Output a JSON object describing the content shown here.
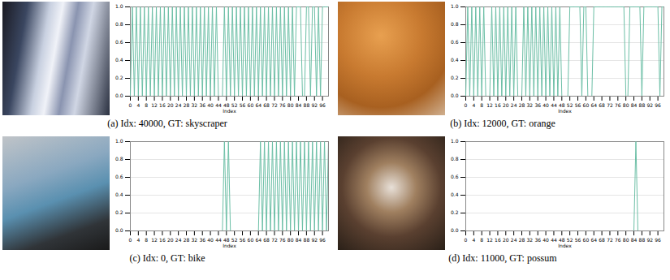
{
  "chart_data": [
    {
      "type": "line",
      "caption": "(a) Idx: 40000, GT: skyscraper",
      "xlabel": "Index",
      "color": "#6cbfa6",
      "grid": true,
      "xlim": [
        0,
        99
      ],
      "xticks": [
        0,
        4,
        8,
        12,
        16,
        20,
        24,
        28,
        32,
        36,
        40,
        44,
        48,
        52,
        56,
        60,
        64,
        68,
        72,
        76,
        80,
        84,
        88,
        92,
        96
      ],
      "ylim": [
        0,
        1
      ],
      "yticks": [
        {
          "value": 0,
          "label": "0.0"
        },
        {
          "value": 0.2,
          "label": "0.2"
        },
        {
          "value": 0.4,
          "label": "0.4"
        },
        {
          "value": 0.6,
          "label": "0.6"
        },
        {
          "value": 0.8,
          "label": "0.8"
        },
        {
          "value": 1,
          "label": "1.0"
        }
      ],
      "x": [
        0,
        1,
        2,
        3,
        4,
        5,
        6,
        7,
        8,
        9,
        10,
        11,
        12,
        13,
        14,
        15,
        16,
        17,
        18,
        19,
        20,
        21,
        22,
        23,
        24,
        25,
        26,
        27,
        28,
        29,
        30,
        31,
        32,
        33,
        34,
        35,
        36,
        37,
        38,
        39,
        40,
        41,
        42,
        43,
        44,
        45,
        46,
        47,
        48,
        49,
        50,
        51,
        52,
        53,
        54,
        55,
        56,
        57,
        58,
        59,
        60,
        61,
        62,
        63,
        64,
        65,
        66,
        67,
        68,
        69,
        70,
        71,
        72,
        73,
        74,
        75,
        76,
        77,
        78,
        79,
        80,
        81,
        82,
        83,
        84,
        85,
        86,
        87,
        88,
        89,
        90,
        91,
        92,
        93,
        94,
        95,
        96,
        97,
        98,
        99
      ],
      "values": [
        0,
        1,
        0,
        1,
        0,
        1,
        0,
        1,
        0,
        1,
        0,
        1,
        0,
        1,
        0,
        1,
        0,
        1,
        0,
        1,
        0,
        1,
        0,
        1,
        0,
        1,
        0,
        1,
        0,
        1,
        0,
        1,
        0,
        1,
        0,
        1,
        0,
        1,
        0,
        1,
        0,
        1,
        0,
        1,
        0,
        0,
        0,
        1,
        0,
        1,
        0,
        1,
        0,
        1,
        0,
        1,
        0,
        1,
        0,
        1,
        0,
        1,
        0,
        1,
        0,
        1,
        0,
        1,
        0,
        1,
        0,
        1,
        0,
        1,
        0,
        1,
        0,
        1,
        0,
        1,
        0,
        1,
        0,
        1,
        1,
        1,
        0,
        0,
        1,
        1,
        0,
        1,
        1,
        0,
        1,
        0,
        1,
        1,
        1,
        1
      ]
    },
    {
      "type": "line",
      "caption": "(b) Idx: 12000, GT: orange",
      "xlabel": "Index",
      "color": "#6cbfa6",
      "grid": true,
      "xlim": [
        0,
        99
      ],
      "xticks": [
        0,
        4,
        8,
        12,
        16,
        20,
        24,
        28,
        32,
        36,
        40,
        44,
        48,
        52,
        56,
        60,
        64,
        68,
        72,
        76,
        80,
        84,
        88,
        92,
        96
      ],
      "ylim": [
        0,
        1
      ],
      "yticks": [
        {
          "value": 0,
          "label": "0.0"
        },
        {
          "value": 0.2,
          "label": "0.2"
        },
        {
          "value": 0.4,
          "label": "0.4"
        },
        {
          "value": 0.6,
          "label": "0.6"
        },
        {
          "value": 0.8,
          "label": "0.8"
        },
        {
          "value": 1,
          "label": "1.0"
        }
      ],
      "x": [
        0,
        1,
        2,
        3,
        4,
        5,
        6,
        7,
        8,
        9,
        10,
        11,
        12,
        13,
        14,
        15,
        16,
        17,
        18,
        19,
        20,
        21,
        22,
        23,
        24,
        25,
        26,
        27,
        28,
        29,
        30,
        31,
        32,
        33,
        34,
        35,
        36,
        37,
        38,
        39,
        40,
        41,
        42,
        43,
        44,
        45,
        46,
        47,
        48,
        49,
        50,
        51,
        52,
        53,
        54,
        55,
        56,
        57,
        58,
        59,
        60,
        61,
        62,
        63,
        64,
        65,
        66,
        67,
        68,
        69,
        70,
        71,
        72,
        73,
        74,
        75,
        76,
        77,
        78,
        79,
        80,
        81,
        82,
        83,
        84,
        85,
        86,
        87,
        88,
        89,
        90,
        91,
        92,
        93,
        94,
        95,
        96,
        97,
        98,
        99
      ],
      "values": [
        0,
        1,
        0,
        1,
        0,
        1,
        0,
        1,
        0,
        1,
        0,
        0,
        0,
        1,
        0,
        1,
        0,
        1,
        0,
        1,
        0,
        1,
        0,
        1,
        0,
        1,
        0,
        0,
        0,
        1,
        0,
        1,
        0,
        1,
        0,
        1,
        0,
        1,
        0,
        1,
        0,
        1,
        0,
        1,
        0,
        1,
        0,
        1,
        0,
        0,
        0,
        0,
        1,
        1,
        1,
        1,
        1,
        1,
        0,
        1,
        1,
        0,
        0,
        0,
        1,
        1,
        1,
        1,
        1,
        1,
        1,
        1,
        1,
        1,
        1,
        1,
        1,
        1,
        1,
        1,
        0,
        0,
        1,
        1,
        1,
        1,
        1,
        1,
        0,
        1,
        1,
        1,
        1,
        1,
        1,
        1,
        1,
        0,
        1,
        1
      ]
    },
    {
      "type": "line",
      "caption": "(c) Idx: 0, GT: bike",
      "xlabel": "Index",
      "color": "#6cbfa6",
      "grid": true,
      "xlim": [
        0,
        99
      ],
      "xticks": [
        0,
        4,
        8,
        12,
        16,
        20,
        24,
        28,
        32,
        36,
        40,
        44,
        48,
        52,
        56,
        60,
        64,
        68,
        72,
        76,
        80,
        84,
        88,
        92,
        96
      ],
      "ylim": [
        0,
        1
      ],
      "yticks": [
        {
          "value": 0,
          "label": "0.0"
        },
        {
          "value": 0.2,
          "label": "0.2"
        },
        {
          "value": 0.4,
          "label": "0.4"
        },
        {
          "value": 0.6,
          "label": "0.6"
        },
        {
          "value": 0.8,
          "label": "0.8"
        },
        {
          "value": 1,
          "label": "1.0"
        }
      ],
      "x": [
        0,
        1,
        2,
        3,
        4,
        5,
        6,
        7,
        8,
        9,
        10,
        11,
        12,
        13,
        14,
        15,
        16,
        17,
        18,
        19,
        20,
        21,
        22,
        23,
        24,
        25,
        26,
        27,
        28,
        29,
        30,
        31,
        32,
        33,
        34,
        35,
        36,
        37,
        38,
        39,
        40,
        41,
        42,
        43,
        44,
        45,
        46,
        47,
        48,
        49,
        50,
        51,
        52,
        53,
        54,
        55,
        56,
        57,
        58,
        59,
        60,
        61,
        62,
        63,
        64,
        65,
        66,
        67,
        68,
        69,
        70,
        71,
        72,
        73,
        74,
        75,
        76,
        77,
        78,
        79,
        80,
        81,
        82,
        83,
        84,
        85,
        86,
        87,
        88,
        89,
        90,
        91,
        92,
        93,
        94,
        95,
        96,
        97,
        98,
        99
      ],
      "values": [
        0,
        0,
        0,
        0,
        0,
        0,
        0,
        0,
        0,
        0,
        0,
        0,
        0,
        0,
        0,
        0,
        0,
        0,
        0,
        0,
        0,
        0,
        0,
        0,
        0,
        0,
        0,
        0,
        0,
        0,
        0,
        0,
        0,
        0,
        0,
        0,
        0,
        0,
        0,
        0,
        0,
        0,
        0,
        0,
        0,
        0,
        0,
        1,
        0,
        1,
        0,
        0,
        0,
        0,
        0,
        0,
        0,
        0,
        0,
        0,
        0,
        0,
        0,
        0,
        0,
        1,
        0,
        1,
        0,
        1,
        0,
        1,
        0,
        1,
        0,
        1,
        0,
        1,
        0,
        1,
        0,
        1,
        0,
        1,
        0,
        1,
        0,
        1,
        0,
        1,
        0,
        1,
        0,
        1,
        0,
        1,
        0,
        1,
        0,
        1
      ]
    },
    {
      "type": "line",
      "caption": "(d) Idx: 11000, GT: possum",
      "xlabel": "Index",
      "color": "#6cbfa6",
      "grid": true,
      "xlim": [
        0,
        99
      ],
      "xticks": [
        0,
        4,
        8,
        12,
        16,
        20,
        24,
        28,
        32,
        36,
        40,
        44,
        48,
        52,
        56,
        60,
        64,
        68,
        72,
        76,
        80,
        84,
        88,
        92,
        96
      ],
      "ylim": [
        0,
        1
      ],
      "yticks": [
        {
          "value": 0,
          "label": "0.0"
        },
        {
          "value": 0.2,
          "label": "0.2"
        },
        {
          "value": 0.4,
          "label": "0.4"
        },
        {
          "value": 0.6,
          "label": "0.6"
        },
        {
          "value": 0.8,
          "label": "0.8"
        },
        {
          "value": 1,
          "label": "1.0"
        }
      ],
      "x": [
        0,
        1,
        2,
        3,
        4,
        5,
        6,
        7,
        8,
        9,
        10,
        11,
        12,
        13,
        14,
        15,
        16,
        17,
        18,
        19,
        20,
        21,
        22,
        23,
        24,
        25,
        26,
        27,
        28,
        29,
        30,
        31,
        32,
        33,
        34,
        35,
        36,
        37,
        38,
        39,
        40,
        41,
        42,
        43,
        44,
        45,
        46,
        47,
        48,
        49,
        50,
        51,
        52,
        53,
        54,
        55,
        56,
        57,
        58,
        59,
        60,
        61,
        62,
        63,
        64,
        65,
        66,
        67,
        68,
        69,
        70,
        71,
        72,
        73,
        74,
        75,
        76,
        77,
        78,
        79,
        80,
        81,
        82,
        83,
        84,
        85,
        86,
        87,
        88,
        89,
        90,
        91,
        92,
        93,
        94,
        95,
        96,
        97,
        98,
        99
      ],
      "values": [
        0,
        0,
        0,
        0,
        0,
        0,
        0,
        0,
        0,
        0,
        0,
        0,
        0,
        0,
        0,
        0,
        0,
        0,
        0,
        0,
        0,
        0,
        0,
        0,
        0,
        0,
        0,
        0,
        0,
        0,
        0,
        0,
        0,
        0,
        0,
        0,
        0,
        0,
        0,
        0,
        0,
        0,
        0,
        0,
        0,
        0,
        0,
        0,
        0,
        0,
        0,
        0,
        0,
        0,
        0,
        0,
        0,
        0,
        0,
        0,
        0,
        0,
        0,
        0,
        0,
        0,
        0,
        0,
        0,
        0,
        0,
        0,
        0,
        0,
        0,
        0,
        0,
        0,
        0,
        0,
        0,
        0,
        0,
        0,
        0,
        1,
        0,
        0,
        0,
        0,
        0,
        0,
        0,
        0,
        0,
        0,
        0,
        0,
        0,
        0
      ]
    }
  ]
}
